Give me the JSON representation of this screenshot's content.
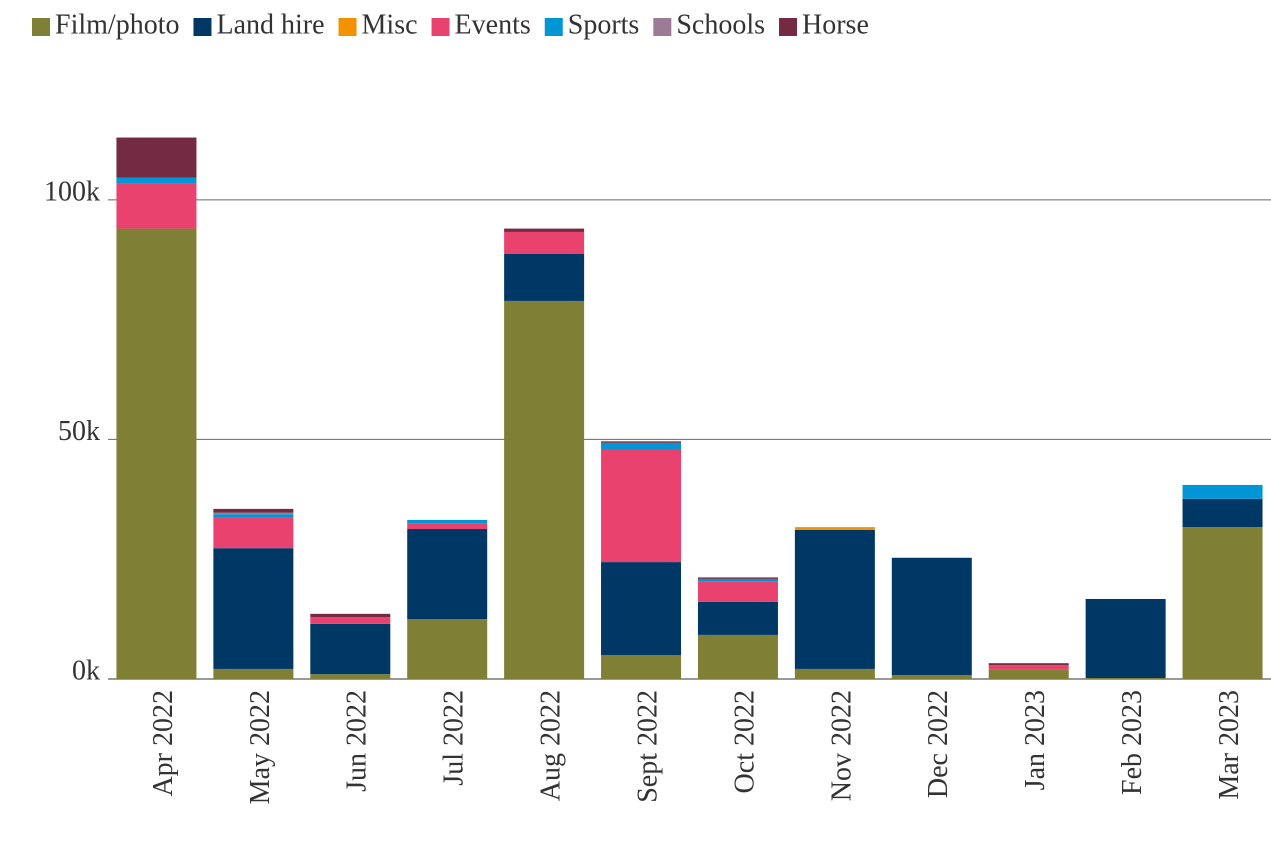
{
  "chart_data": {
    "type": "stacked_bar",
    "categories": [
      "Apr 2022",
      "May 2022",
      "Jun 2022",
      "Jul 2022",
      "Aug 2022",
      "Sept 2022",
      "Oct 2022",
      "Nov 2022",
      "Dec 2022",
      "Jan 2023",
      "Feb 2023",
      "Mar 2023"
    ],
    "series": [
      {
        "name": "Film/photo",
        "color": "#7f7f35",
        "values": [
          94000,
          2100,
          1000,
          12500,
          78900,
          5000,
          9200,
          2100,
          800,
          1900,
          200,
          31700
        ]
      },
      {
        "name": "Land hire",
        "color": "#003865",
        "values": [
          0,
          25200,
          10500,
          18800,
          9800,
          19400,
          6900,
          29000,
          24500,
          0,
          16500,
          5900
        ]
      },
      {
        "name": "Misc",
        "color": "#f39200",
        "values": [
          0,
          0,
          0,
          0,
          0,
          0,
          0,
          600,
          0,
          0,
          0,
          0
        ]
      },
      {
        "name": "Events",
        "color": "#e9426e",
        "values": [
          9500,
          6500,
          1400,
          1100,
          4600,
          23400,
          4200,
          0,
          0,
          1000,
          0,
          0
        ]
      },
      {
        "name": "Sports",
        "color": "#0096d6",
        "values": [
          1100,
          600,
          0,
          800,
          0,
          1500,
          600,
          0,
          0,
          0,
          0,
          2900
        ]
      },
      {
        "name": "Schools",
        "color": "#9b7b96",
        "values": [
          0,
          300,
          0,
          0,
          0,
          0,
          0,
          0,
          0,
          0,
          0,
          0
        ]
      },
      {
        "name": "Horse",
        "color": "#742a42",
        "values": [
          8400,
          800,
          700,
          0,
          700,
          300,
          300,
          0,
          0,
          400,
          0,
          0
        ]
      }
    ],
    "ylim": [
      0,
      120000
    ],
    "yticks": [
      {
        "value": 0,
        "label": "0k"
      },
      {
        "value": 50000,
        "label": "50k"
      },
      {
        "value": 100000,
        "label": "100k"
      }
    ],
    "grid": true,
    "legend": "top"
  }
}
